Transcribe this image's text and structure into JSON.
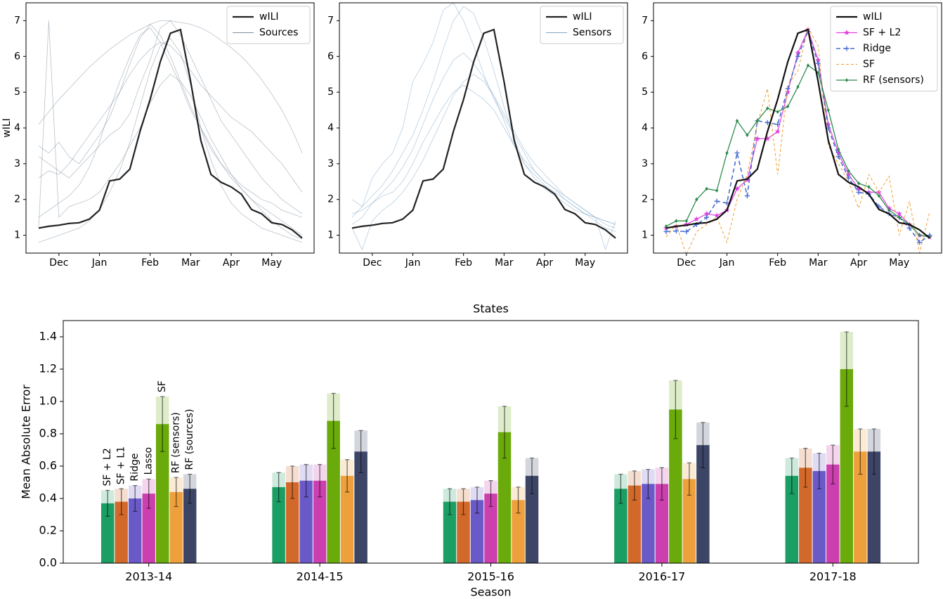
{
  "chart_data": [
    {
      "type": "line",
      "ylabel": "wILI",
      "categories": [
        null,
        null,
        "Dec",
        null,
        null,
        null,
        "Jan",
        null,
        null,
        null,
        null,
        "Feb",
        null,
        null,
        null,
        "Mar",
        null,
        null,
        null,
        "Apr",
        null,
        null,
        null,
        "May",
        null,
        null,
        null
      ],
      "ylim": [
        0.5,
        7.5
      ],
      "yticks": [
        1,
        2,
        3,
        4,
        5,
        6,
        7
      ],
      "legend": "upper right",
      "series": [
        {
          "name": "wILI",
          "color": "#222222",
          "width": 2.2,
          "values": [
            1.2,
            1.25,
            1.28,
            1.33,
            1.35,
            1.45,
            1.7,
            2.52,
            2.57,
            2.85,
            3.9,
            4.8,
            5.85,
            6.65,
            6.75,
            5.3,
            3.65,
            2.7,
            2.48,
            2.35,
            2.15,
            1.72,
            1.6,
            1.35,
            1.3,
            1.15,
            0.92
          ]
        },
        {
          "name": "Sources",
          "color": "#7f909e",
          "width": 0.8,
          "lines": [
            [
              4.1,
              4.45,
              4.8,
              5.1,
              5.4,
              5.7,
              5.95,
              6.2,
              6.4,
              6.6,
              6.75,
              6.9,
              7.0,
              7.0,
              6.95,
              6.9,
              6.8,
              6.65,
              6.45,
              6.25,
              6.0,
              5.7,
              5.35,
              4.95,
              4.5,
              3.95,
              3.3
            ],
            [
              3.5,
              3.3,
              3.6,
              3.2,
              3.0,
              3.4,
              3.8,
              4.3,
              5.0,
              5.8,
              6.5,
              6.9,
              6.6,
              6.0,
              5.3,
              4.6,
              4.0,
              3.5,
              3.0,
              2.7,
              2.4,
              2.2,
              2.0,
              1.9,
              1.7,
              1.6,
              1.5
            ],
            [
              1.5,
              1.7,
              1.9,
              2.1,
              2.4,
              2.9,
              3.6,
              4.5,
              5.3,
              6.0,
              6.6,
              6.8,
              6.4,
              5.8,
              5.2,
              4.5,
              4.0,
              3.4,
              3.0,
              2.6,
              2.3,
              2.0,
              1.8,
              1.6,
              1.4,
              1.2,
              1.0
            ],
            [
              0.8,
              0.9,
              1.0,
              1.1,
              1.2,
              1.4,
              1.7,
              2.2,
              2.8,
              3.6,
              4.6,
              5.6,
              6.3,
              6.5,
              6.1,
              5.2,
              4.0,
              3.1,
              2.4,
              1.9,
              1.6,
              1.4,
              1.2,
              1.1,
              1.0,
              0.9,
              0.8
            ],
            [
              2.6,
              2.8,
              2.7,
              3.0,
              3.4,
              3.8,
              4.2,
              4.6,
              5.0,
              5.5,
              5.9,
              6.2,
              6.4,
              6.3,
              6.0,
              5.6,
              5.2,
              4.9,
              4.6,
              4.3,
              4.1,
              3.9,
              3.6,
              3.3,
              3.0,
              2.6,
              2.2
            ],
            [
              1.2,
              7.0,
              1.5,
              1.8,
              1.9,
              2.0,
              2.2,
              2.6,
              3.0,
              3.5,
              4.0,
              4.7,
              5.2,
              5.5,
              5.3,
              4.9,
              4.3,
              3.7,
              3.2,
              2.7,
              2.3,
              2.0,
              1.7,
              1.4,
              1.2,
              1.0,
              0.9
            ],
            [
              3.2,
              3.0,
              2.8,
              2.6,
              2.9,
              3.2,
              3.5,
              3.8,
              4.0,
              4.4,
              5.2,
              5.9,
              6.8,
              7.0,
              6.6,
              6.0,
              5.4,
              4.8,
              4.2,
              3.8,
              3.4,
              3.0,
              2.6,
              2.3,
              2.0,
              1.8,
              1.6
            ]
          ]
        }
      ]
    },
    {
      "type": "line",
      "categories": [
        null,
        null,
        "Dec",
        null,
        null,
        null,
        "Jan",
        null,
        null,
        null,
        null,
        "Feb",
        null,
        null,
        null,
        "Mar",
        null,
        null,
        null,
        "Apr",
        null,
        null,
        null,
        "May",
        null,
        null,
        null
      ],
      "ylim": [
        0.5,
        7.5
      ],
      "yticks": [
        1,
        2,
        3,
        4,
        5,
        6,
        7
      ],
      "legend": "upper right",
      "series": [
        {
          "name": "wILI",
          "color": "#222222",
          "width": 2.2,
          "values": [
            1.2,
            1.25,
            1.28,
            1.33,
            1.35,
            1.45,
            1.7,
            2.52,
            2.57,
            2.85,
            3.9,
            4.8,
            5.85,
            6.65,
            6.75,
            5.3,
            3.65,
            2.7,
            2.48,
            2.35,
            2.15,
            1.72,
            1.6,
            1.35,
            1.3,
            1.15,
            0.92
          ]
        },
        {
          "name": "Sensors",
          "color": "#7ea6c8",
          "width": 0.8,
          "lines": [
            [
              1.5,
              1.8,
              2.1,
              2.4,
              2.8,
              3.3,
              3.8,
              4.5,
              5.3,
              6.2,
              7.0,
              7.4,
              7.2,
              6.5,
              5.6,
              4.6,
              3.7,
              3.0,
              2.6,
              2.3,
              2.1,
              1.9,
              1.7,
              1.6,
              1.5,
              1.4,
              1.3
            ],
            [
              1.3,
              1.5,
              1.9,
              2.2,
              2.5,
              2.9,
              3.4,
              4.1,
              4.8,
              5.4,
              5.9,
              6.1,
              5.8,
              5.4,
              4.9,
              4.2,
              3.5,
              3.0,
              2.7,
              2.4,
              2.2,
              2.0,
              1.8,
              1.6,
              1.5,
              1.4,
              1.3
            ],
            [
              1.6,
              1.7,
              1.9,
              2.1,
              2.2,
              2.5,
              3.0,
              3.6,
              4.1,
              4.6,
              5.0,
              5.2,
              5.0,
              4.8,
              4.5,
              4.0,
              3.5,
              3.1,
              2.8,
              2.5,
              2.3,
              2.1,
              1.9,
              1.7,
              1.5,
              1.3,
              1.2
            ],
            [
              2.0,
              1.8,
              2.6,
              3.0,
              3.3,
              4.0,
              5.3,
              5.8,
              6.4,
              7.3,
              7.5,
              7.0,
              6.3,
              5.5,
              4.8,
              4.3,
              3.8,
              3.3,
              2.8,
              2.5,
              2.3,
              2.0,
              1.8,
              1.6,
              1.4,
              1.2,
              1.1
            ],
            [
              1.2,
              0.6,
              1.4,
              1.7,
              1.9,
              2.2,
              2.6,
              3.1,
              3.7,
              4.3,
              4.9,
              5.3,
              5.5,
              5.3,
              4.9,
              4.4,
              3.9,
              3.4,
              3.0,
              2.7,
              2.4,
              2.1,
              1.9,
              1.7,
              1.5,
              0.6,
              1.4
            ]
          ]
        }
      ]
    },
    {
      "type": "line",
      "categories": [
        null,
        null,
        "Dec",
        null,
        null,
        null,
        "Jan",
        null,
        null,
        null,
        null,
        "Feb",
        null,
        null,
        null,
        "Mar",
        null,
        null,
        null,
        "Apr",
        null,
        null,
        null,
        "May",
        null,
        null,
        null
      ],
      "ylim": [
        0.5,
        7.5
      ],
      "yticks": [
        1,
        2,
        3,
        4,
        5,
        6,
        7
      ],
      "legend": "upper right",
      "series": [
        {
          "name": "wILI",
          "color": "#111111",
          "width": 2.2,
          "values": [
            1.2,
            1.25,
            1.28,
            1.33,
            1.35,
            1.45,
            1.7,
            2.52,
            2.57,
            2.85,
            3.9,
            4.8,
            5.85,
            6.65,
            6.75,
            5.3,
            3.65,
            2.7,
            2.48,
            2.35,
            2.15,
            1.72,
            1.6,
            1.35,
            1.3,
            1.15,
            0.92
          ]
        },
        {
          "name": "SF + L2",
          "color": "#e040e0",
          "width": 1.2,
          "marker": "star",
          "values": [
            1.2,
            1.25,
            1.3,
            1.45,
            1.6,
            1.55,
            1.7,
            2.3,
            2.55,
            3.7,
            3.7,
            3.9,
            5.0,
            6.1,
            6.75,
            5.9,
            4.1,
            3.3,
            2.7,
            2.3,
            2.2,
            2.2,
            1.75,
            1.6,
            1.3,
            1.0,
            0.95
          ]
        },
        {
          "name": "Ridge",
          "color": "#4a6fd0",
          "width": 1.6,
          "dash": "6 4",
          "marker": "plus",
          "values": [
            1.1,
            1.12,
            1.1,
            1.3,
            1.5,
            1.95,
            1.9,
            3.3,
            2.1,
            4.2,
            4.15,
            4.1,
            5.1,
            6.0,
            6.7,
            5.8,
            4.0,
            3.2,
            2.6,
            2.2,
            2.15,
            1.8,
            1.6,
            1.5,
            1.2,
            0.8,
            1.0
          ]
        },
        {
          "name": "SF",
          "color": "#f0a030",
          "width": 1,
          "dash": "4 3",
          "values": [
            0.95,
            1.3,
            0.45,
            1.1,
            1.3,
            1.5,
            0.8,
            2.0,
            2.7,
            4.1,
            5.1,
            2.7,
            5.2,
            5.6,
            6.8,
            6.3,
            3.5,
            3.0,
            2.5,
            1.75,
            2.7,
            2.2,
            2.65,
            1.0,
            1.95,
            0.5,
            1.65
          ]
        },
        {
          "name": "RF (sensors)",
          "color": "#2e8b4e",
          "width": 1.3,
          "marker": "diamond",
          "values": [
            1.25,
            1.4,
            1.4,
            2.0,
            2.3,
            2.25,
            3.3,
            4.2,
            3.8,
            4.2,
            4.55,
            4.45,
            4.6,
            5.15,
            5.75,
            5.55,
            4.5,
            3.4,
            2.8,
            2.45,
            2.35,
            2.1,
            1.7,
            1.5,
            1.3,
            1.0,
            0.95
          ]
        }
      ]
    },
    {
      "type": "bar",
      "title": "States",
      "xlabel": "Season",
      "ylabel": "Mean Absolute Error",
      "categories": [
        "2013-14",
        "2014-15",
        "2015-16",
        "2016-17",
        "2017-18"
      ],
      "ylim": [
        0,
        1.5
      ],
      "yticks": [
        {
          "value": 0,
          "label": "0.0"
        },
        0.2,
        0.4,
        0.6,
        0.8,
        {
          "value": 1,
          "label": "1.0"
        },
        1.2,
        1.4
      ],
      "series": [
        {
          "name": "SF + L2",
          "color": "#1b9e63",
          "values": [
            0.37,
            0.47,
            0.38,
            0.46,
            0.54
          ],
          "errors": [
            0.08,
            0.09,
            0.08,
            0.09,
            0.11
          ]
        },
        {
          "name": "SF + L1",
          "color": "#d2692a",
          "values": [
            0.38,
            0.5,
            0.38,
            0.48,
            0.59
          ],
          "errors": [
            0.08,
            0.1,
            0.08,
            0.09,
            0.12
          ]
        },
        {
          "name": "Ridge",
          "color": "#6a5ac8",
          "values": [
            0.4,
            0.51,
            0.39,
            0.49,
            0.57
          ],
          "errors": [
            0.08,
            0.1,
            0.08,
            0.09,
            0.11
          ]
        },
        {
          "name": "Lasso",
          "color": "#cc3fae",
          "values": [
            0.43,
            0.51,
            0.43,
            0.49,
            0.61
          ],
          "errors": [
            0.09,
            0.1,
            0.08,
            0.1,
            0.12
          ]
        },
        {
          "name": "SF",
          "color": "#6aaa0a",
          "values": [
            0.86,
            0.88,
            0.81,
            0.95,
            1.2
          ],
          "errors": [
            0.17,
            0.17,
            0.16,
            0.18,
            0.23
          ]
        },
        {
          "name": "RF (sensors)",
          "color": "#eea03c",
          "values": [
            0.44,
            0.54,
            0.39,
            0.52,
            0.69
          ],
          "errors": [
            0.09,
            0.1,
            0.08,
            0.1,
            0.14
          ]
        },
        {
          "name": "RF (sources)",
          "color": "#3c4566",
          "values": [
            0.46,
            0.69,
            0.54,
            0.73,
            0.69
          ],
          "errors": [
            0.09,
            0.13,
            0.11,
            0.14,
            0.14
          ]
        }
      ]
    }
  ]
}
